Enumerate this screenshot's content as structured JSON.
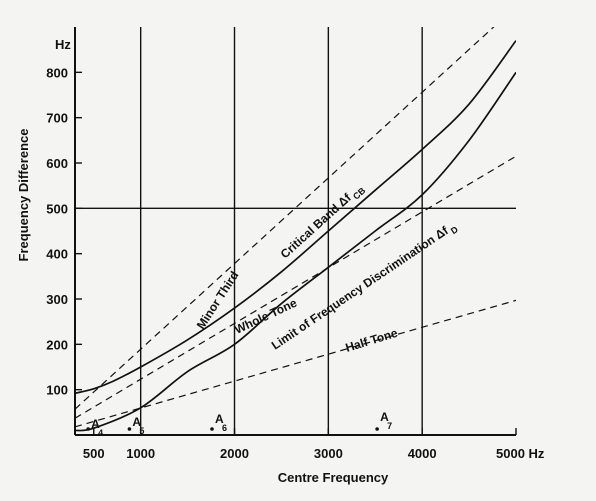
{
  "chart_data": {
    "type": "line",
    "xlabel": "Centre Frequency",
    "ylabel": "Frequency Difference",
    "y_unit": "Hz",
    "x_unit": "Hz",
    "xlim": [
      300,
      5000
    ],
    "ylim": [
      0,
      900
    ],
    "x_ticks": [
      {
        "value": 500,
        "label": "500"
      },
      {
        "value": 1000,
        "label": "1000"
      },
      {
        "value": 2000,
        "label": "2000"
      },
      {
        "value": 3000,
        "label": "3000"
      },
      {
        "value": 4000,
        "label": "4000"
      },
      {
        "value": 5000,
        "label": "5000 Hz"
      }
    ],
    "y_ticks": [
      {
        "value": 100,
        "label": "100"
      },
      {
        "value": 200,
        "label": "200"
      },
      {
        "value": 300,
        "label": "300"
      },
      {
        "value": 400,
        "label": "400"
      },
      {
        "value": 500,
        "label": "500"
      },
      {
        "value": 600,
        "label": "600"
      },
      {
        "value": 700,
        "label": "700"
      },
      {
        "value": 800,
        "label": "800"
      }
    ],
    "major_gridlines": {
      "x": [
        1000,
        2000,
        3000,
        4000
      ],
      "y": [
        500
      ]
    },
    "series": [
      {
        "name": "Critical Band Δf CB",
        "style": "solid",
        "x": [
          300,
          500,
          700,
          1000,
          1500,
          2000,
          2500,
          3000,
          3500,
          4000,
          4500,
          5000
        ],
        "values": [
          92,
          102,
          118,
          150,
          210,
          280,
          360,
          450,
          540,
          630,
          730,
          870
        ]
      },
      {
        "name": "Limit of Frequency Discrimination Δf D",
        "style": "solid",
        "x": [
          300,
          500,
          1000,
          1500,
          2000,
          2500,
          3000,
          3500,
          4000,
          4500,
          5000
        ],
        "values": [
          10,
          15,
          60,
          140,
          200,
          290,
          370,
          450,
          530,
          650,
          800
        ]
      },
      {
        "name": "Minor Third",
        "style": "dashed",
        "x": [
          300,
          5000
        ],
        "values": [
          57,
          945
        ]
      },
      {
        "name": "Whole Tone",
        "style": "dashed",
        "x": [
          300,
          5000
        ],
        "values": [
          37,
          615
        ]
      },
      {
        "name": "Half Tone",
        "style": "dashed",
        "x": [
          300,
          5000
        ],
        "values": [
          18,
          297
        ]
      }
    ],
    "curve_labels": {
      "critical_band": "Critical Band Δf",
      "critical_band_sub": "CB",
      "discrimination": "Limit of Frequency  Discrimination Δf",
      "discrimination_sub": "D",
      "minor_third": "Minor Third",
      "whole_tone": "Whole Tone",
      "half_tone": "Half Tone"
    },
    "annotations": [
      {
        "label": "A",
        "sub": "4",
        "x": 440
      },
      {
        "label": "A",
        "sub": "5",
        "x": 880
      },
      {
        "label": "A",
        "sub": "6",
        "x": 1760
      },
      {
        "label": "A",
        "sub": "7",
        "x": 3520
      }
    ]
  }
}
